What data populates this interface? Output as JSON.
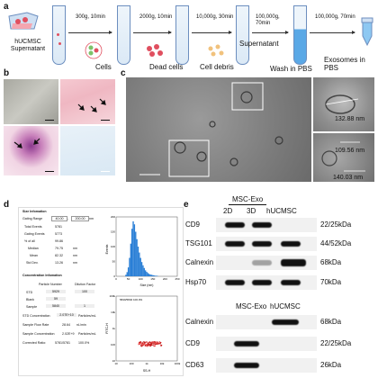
{
  "panels": {
    "a": "a",
    "b": "b",
    "c": "c",
    "d": "d",
    "e": "e"
  },
  "workflow": {
    "source": "hUCMSC Supernatant",
    "steps": [
      {
        "cond": "300g, 10min",
        "label": "Cells"
      },
      {
        "cond": "2000g, 10min",
        "label": "Dead cells"
      },
      {
        "cond": "10,000g, 30min",
        "label": "Cell debris"
      },
      {
        "cond": "100,000g, 70min",
        "label": "Supernatant"
      },
      {
        "cond": "",
        "label": "Wash in PBS"
      },
      {
        "cond": "100,000g, 70min",
        "label": "Exosomes in PBS"
      }
    ]
  },
  "tem": {
    "measure1": "132.88 nm",
    "measure2": "109.56 nm",
    "measure3": "140.03 nm"
  },
  "nta": {
    "size_title": "Size Infomation",
    "gating_label": "Gating Range",
    "gating_min": "40.00",
    "gating_max": "200.00",
    "gating_unit": "nm",
    "rows": [
      {
        "k": "Total Events",
        "v": "5781"
      },
      {
        "k": "Gating Events",
        "v": "5773"
      },
      {
        "k": "% of all",
        "v": "99.86"
      },
      {
        "k": "Median",
        "v": "79.75",
        "u": "nm"
      },
      {
        "k": "Mean",
        "v": "82.32",
        "u": "nm"
      },
      {
        "k": "Std Dev.",
        "v": "13.26",
        "u": "nm"
      }
    ],
    "conc_title": "Concentration Infomation",
    "conc_headers": [
      "Particle Number",
      "Dilution Factor"
    ],
    "conc_rows": [
      {
        "k": "STD",
        "v": "5929",
        "f": "100"
      },
      {
        "k": "Blank",
        "v": "59",
        "f": ""
      },
      {
        "k": "Sample",
        "v": "5840",
        "f": "1"
      }
    ],
    "std_conc": {
      "k": "STD Concentration",
      "v": "2.07E+10",
      "u": "Particles/mL"
    },
    "flow": {
      "k": "Sample Flow Rate",
      "v": "28.64",
      "u": "nL/min"
    },
    "sample_conc": {
      "k": "Sample Concentration",
      "v": "2.02E+9",
      "u": "Particles/mL"
    },
    "ratio": {
      "k": "Corrected Ratio:",
      "v": "5781/5781",
      "p": "100.0%"
    }
  },
  "chart_data": [
    {
      "type": "bar",
      "xlabel": "Size (nm)",
      "ylabel": "Events",
      "xlim": [
        0,
        250
      ],
      "ylim": [
        0,
        200
      ],
      "xticks": [
        0,
        50,
        100,
        150,
        200,
        250
      ],
      "yticks": [
        0,
        50,
        100,
        150,
        200
      ],
      "x": [
        40,
        45,
        50,
        55,
        60,
        65,
        70,
        75,
        80,
        85,
        90,
        95,
        100,
        105,
        110,
        115,
        120,
        125,
        130,
        135,
        140,
        145,
        150,
        155,
        160,
        165,
        170
      ],
      "values": [
        5,
        14,
        30,
        62,
        110,
        160,
        185,
        175,
        150,
        125,
        100,
        80,
        62,
        48,
        37,
        28,
        20,
        15,
        11,
        8,
        6,
        5,
        4,
        3,
        2,
        2,
        1
      ]
    },
    {
      "type": "scatter",
      "annotation": "5840/5840 100.0%",
      "xlabel": "SS-H",
      "ylabel": "FITC-H",
      "xticks": [
        "10",
        "100",
        "1k",
        "10k",
        "100k"
      ],
      "yticks": [
        "10",
        "100",
        "1k",
        "10k",
        "100k"
      ]
    }
  ],
  "western": {
    "top_group": "MSC-Exo",
    "top_extra": "hUCMSC",
    "lanes": [
      "2D",
      "3D",
      "hUCMSC"
    ],
    "top_rows": [
      {
        "name": "CD9",
        "kda": "22/25kDa"
      },
      {
        "name": "TSG101",
        "kda": "44/52kDa"
      },
      {
        "name": "Calnexin",
        "kda": "68kDa"
      },
      {
        "name": "Hsp70",
        "kda": "70kDa"
      }
    ],
    "bottom_lanes": [
      "MSC-Exo",
      "hUCMSC"
    ],
    "bottom_rows": [
      {
        "name": "Calnexin",
        "kda": "68kDa"
      },
      {
        "name": "CD9",
        "kda": "22/25kDa"
      },
      {
        "name": "CD63",
        "kda": "26kDa"
      }
    ]
  }
}
